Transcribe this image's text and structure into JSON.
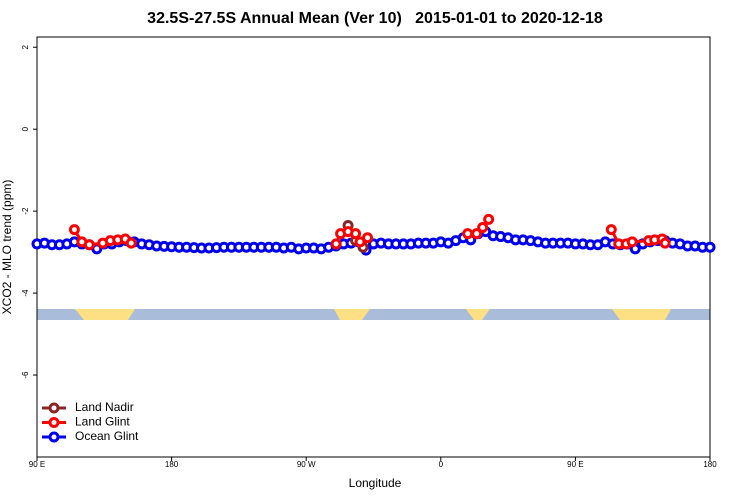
{
  "chart_data": {
    "type": "line",
    "title": "32.5S-27.5S Annual Mean (Ver 10)   2015-01-01 to 2020-12-18",
    "x_label": "Longitude",
    "y_label": "XCO2 - MLO trend (ppm)",
    "xlim": [
      90,
      540
    ],
    "xticks": [
      {
        "value": 90,
        "label": "90 E"
      },
      {
        "value": 180,
        "label": "180"
      },
      {
        "value": 270,
        "label": "90 W"
      },
      {
        "value": 360,
        "label": "0"
      },
      {
        "value": 450,
        "label": "90 E"
      },
      {
        "value": 540,
        "label": "180"
      }
    ],
    "ylim": [
      -8,
      2.25
    ],
    "yticks": [
      2,
      0,
      -2,
      -4,
      -6
    ],
    "legend": "bottom-left",
    "series": [
      {
        "name": "Land Nadir",
        "color": "#8b2525",
        "x": [
          298,
          303,
          308
        ],
        "values": [
          -2.35,
          -2.72,
          -2.88
        ]
      },
      {
        "name": "Land Glint",
        "color": "#ff0000",
        "x": [
          115,
          120,
          125,
          134,
          139,
          144,
          149,
          153,
          null,
          290,
          293,
          298,
          303,
          306,
          311,
          null,
          378,
          384,
          388,
          392,
          null,
          474,
          479,
          484,
          488,
          499,
          503,
          508,
          510
        ],
        "values": [
          -2.45,
          -2.75,
          -2.82,
          -2.78,
          -2.72,
          -2.7,
          -2.68,
          -2.78,
          null,
          -2.8,
          -2.55,
          -2.5,
          -2.55,
          -2.75,
          -2.65,
          null,
          -2.55,
          -2.55,
          -2.4,
          -2.2,
          null,
          -2.45,
          -2.8,
          -2.8,
          -2.75,
          -2.72,
          -2.7,
          -2.68,
          -2.78
        ]
      },
      {
        "name": "Ocean Glint",
        "color": "#0000ee",
        "x": [
          90,
          95,
          100,
          105,
          110,
          115,
          120,
          125,
          130,
          135,
          140,
          145,
          150,
          155,
          160,
          165,
          170,
          175,
          180,
          185,
          190,
          195,
          200,
          205,
          210,
          215,
          220,
          225,
          230,
          235,
          240,
          245,
          250,
          255,
          260,
          265,
          270,
          275,
          280,
          285,
          290,
          295,
          300,
          305,
          310,
          315,
          320,
          325,
          330,
          335,
          340,
          345,
          350,
          355,
          360,
          365,
          370,
          375,
          380,
          385,
          390,
          395,
          400,
          405,
          410,
          415,
          420,
          425,
          430,
          435,
          440,
          445,
          450,
          455,
          460,
          465,
          470,
          475,
          480,
          485,
          490,
          495,
          500,
          505,
          510,
          515,
          520,
          525,
          530,
          535,
          540
        ],
        "values": [
          -2.8,
          -2.78,
          -2.82,
          -2.82,
          -2.8,
          -2.75,
          -2.8,
          -2.82,
          -2.92,
          -2.8,
          -2.8,
          -2.75,
          -2.72,
          -2.75,
          -2.8,
          -2.82,
          -2.85,
          -2.86,
          -2.87,
          -2.88,
          -2.88,
          -2.89,
          -2.9,
          -2.9,
          -2.89,
          -2.88,
          -2.88,
          -2.88,
          -2.88,
          -2.88,
          -2.88,
          -2.88,
          -2.88,
          -2.9,
          -2.88,
          -2.92,
          -2.9,
          -2.9,
          -2.92,
          -2.88,
          -2.85,
          -2.8,
          -2.78,
          -2.75,
          -2.95,
          -2.8,
          -2.78,
          -2.8,
          -2.8,
          -2.8,
          -2.8,
          -2.78,
          -2.78,
          -2.78,
          -2.75,
          -2.78,
          -2.72,
          -2.65,
          -2.7,
          -2.55,
          -2.5,
          -2.6,
          -2.62,
          -2.65,
          -2.7,
          -2.7,
          -2.72,
          -2.75,
          -2.78,
          -2.78,
          -2.78,
          -2.78,
          -2.8,
          -2.8,
          -2.82,
          -2.82,
          -2.75,
          -2.8,
          -2.82,
          -2.8,
          -2.92,
          -2.8,
          -2.75,
          -2.72,
          -2.72,
          -2.78,
          -2.8,
          -2.85,
          -2.85,
          -2.88,
          -2.88
        ]
      }
    ]
  }
}
